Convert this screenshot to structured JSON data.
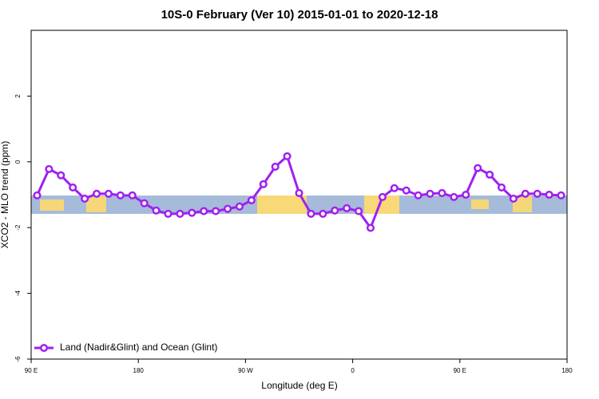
{
  "chart_data": {
    "type": "line",
    "title": "10S-0 February (Ver 10)   2015-01-01 to 2020-12-18",
    "x_label": "Longitude (deg E)",
    "y_label": "XCO2 - MLO trend (ppm)",
    "xlim": [
      90,
      540
    ],
    "ylim": [
      -6,
      4
    ],
    "xticks": [
      {
        "value": 90,
        "label": "90 E"
      },
      180,
      {
        "value": 270,
        "label": "90 W"
      },
      {
        "value": 360,
        "label": "0"
      },
      {
        "value": 450,
        "label": "90 E"
      },
      {
        "value": 540,
        "label": "180"
      }
    ],
    "yticks": [
      -6,
      -4,
      -2,
      0,
      2
    ],
    "legend_position": "bottom-left",
    "x": [
      95,
      105,
      115,
      125,
      135,
      145,
      155,
      165,
      175,
      185,
      195,
      205,
      215,
      225,
      235,
      245,
      255,
      265,
      275,
      285,
      295,
      305,
      315,
      325,
      335,
      345,
      355,
      365,
      375,
      385,
      395,
      405,
      415,
      425,
      435,
      445,
      455,
      465,
      475,
      485,
      495,
      505,
      515,
      525,
      535
    ],
    "series": [
      {
        "name": "Land (Nadir&Glint) and Ocean (Glint)",
        "color": "#a020f0",
        "values": [
          -1.02,
          -0.22,
          -0.41,
          -0.78,
          -1.12,
          -0.97,
          -0.97,
          -1.02,
          -1.02,
          -1.26,
          -1.48,
          -1.58,
          -1.58,
          -1.55,
          -1.5,
          -1.5,
          -1.43,
          -1.36,
          -1.17,
          -0.68,
          -0.15,
          0.17,
          -0.95,
          -1.58,
          -1.58,
          -1.48,
          -1.41,
          -1.5,
          -2.01,
          -1.07,
          -0.8,
          -0.87,
          -1.02,
          -0.97,
          -0.95,
          -1.07,
          -1.0,
          -0.19,
          -0.39,
          -0.78,
          -1.12,
          -0.97,
          -0.97,
          -1.0,
          -1.02
        ]
      }
    ]
  }
}
